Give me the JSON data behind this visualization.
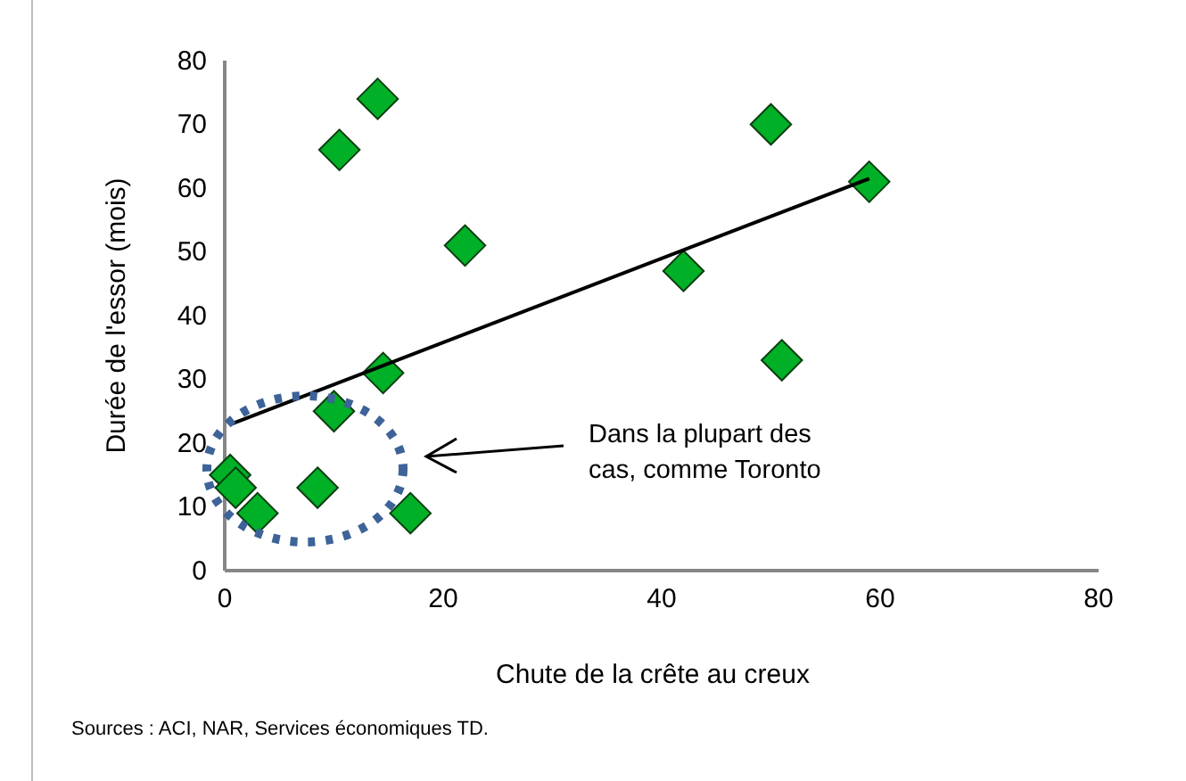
{
  "chart_data": {
    "type": "scatter",
    "xlabel": "Chute de la crête au creux",
    "ylabel": "Durée de l'essor (mois)",
    "xlim": [
      0,
      80
    ],
    "xticks": [
      0,
      20,
      40,
      60,
      80
    ],
    "ylim": [
      0,
      80
    ],
    "yticks": [
      0,
      10,
      20,
      30,
      40,
      50,
      60,
      70,
      80
    ],
    "grid": false,
    "series": [
      {
        "color": "#00b026",
        "marker": "diamond",
        "x": [
          0.5,
          1,
          3,
          8.5,
          10.5,
          14,
          10,
          14.5,
          17,
          22,
          42,
          50,
          51,
          59
        ],
        "values": [
          15,
          13,
          9,
          13,
          66,
          74,
          25,
          31,
          9,
          51,
          47,
          70,
          33,
          61
        ]
      },
      {
        "type": "line",
        "color": "#000000",
        "marker": "none",
        "line_style": "solid",
        "x": [
          0.6,
          59
        ],
        "values": [
          23,
          61.5
        ]
      }
    ],
    "annotations": [
      "Dans la plupart des cas, comme Toronto",
      "Sources : ACI, NAR, Services économiques TD."
    ]
  }
}
